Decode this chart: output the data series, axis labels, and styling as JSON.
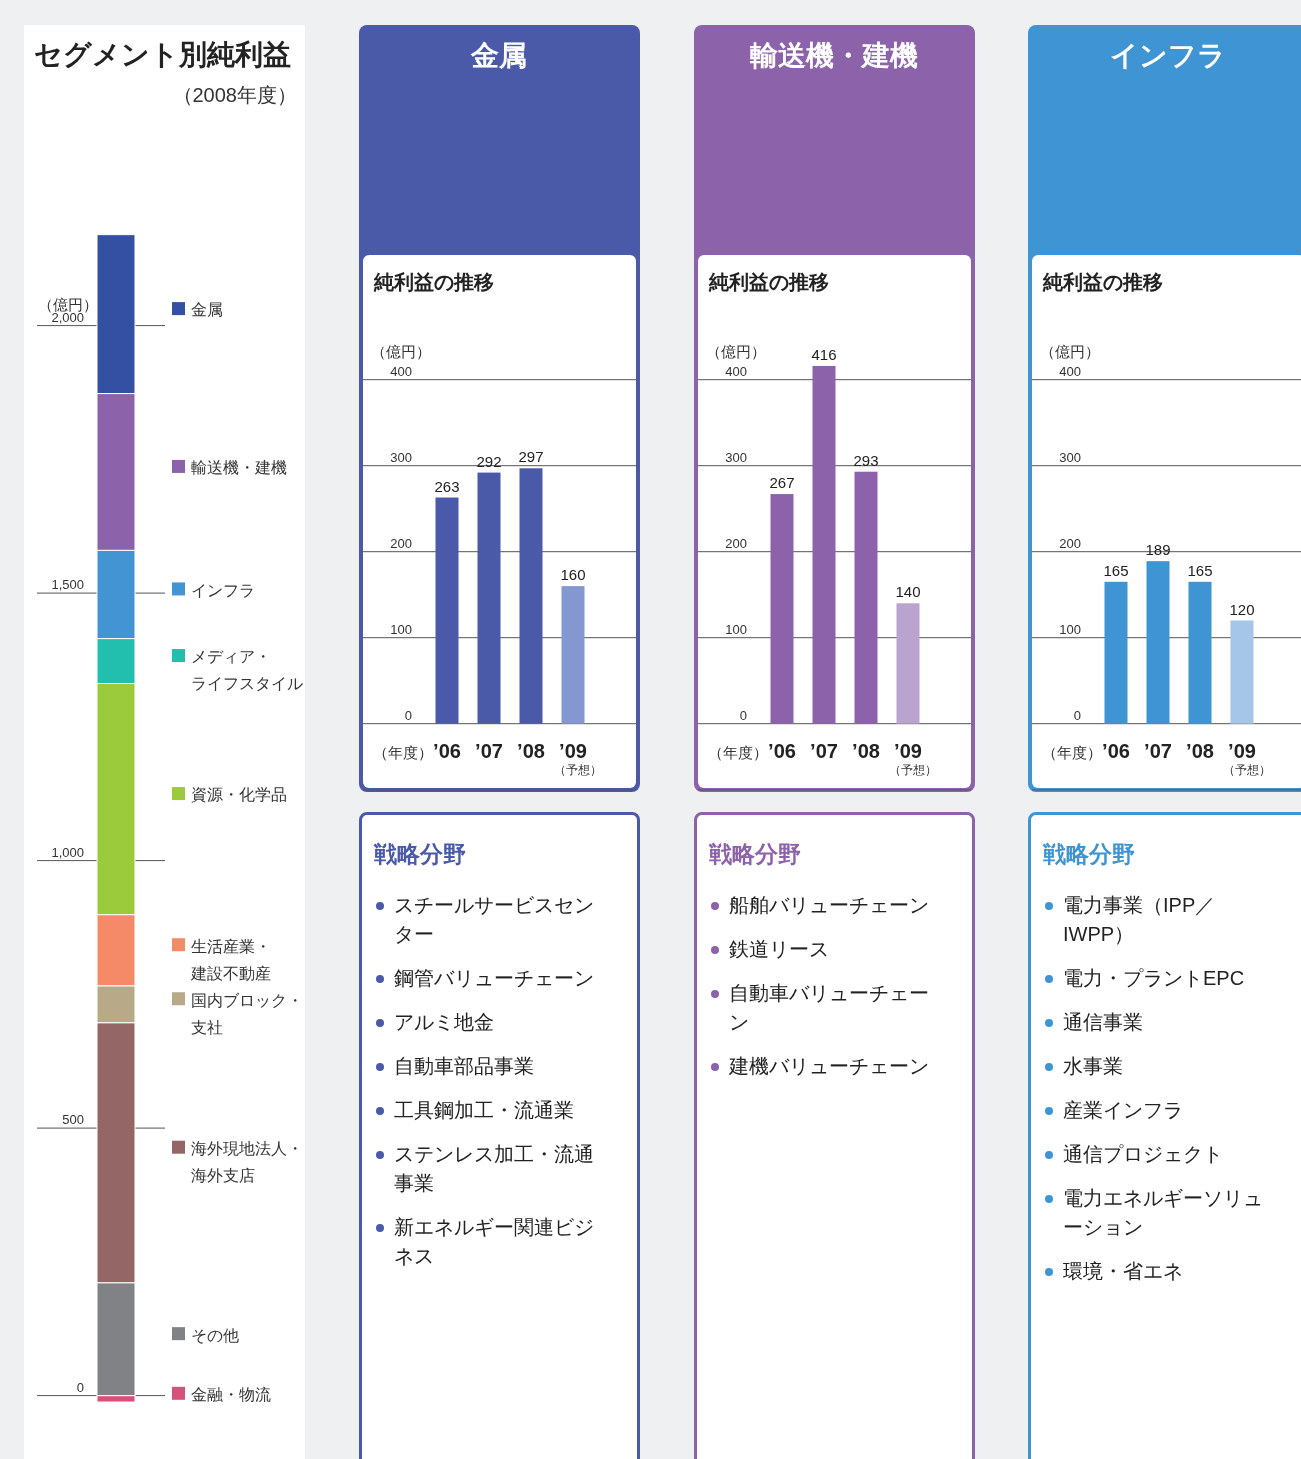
{
  "chart_data": [
    {
      "type": "bar",
      "stacked": true,
      "title": "セグメント別純利益",
      "subtitle": "（2008年度）",
      "ylabel": "（億円）",
      "categories": [
        null
      ],
      "ylim": [
        -115,
        2560
      ],
      "yticks": [
        0,
        {
          "value": 500,
          "label": "500"
        },
        {
          "value": 1000,
          "label": "1,000"
        },
        {
          "value": 1500,
          "label": "1,500"
        },
        {
          "value": 2000,
          "label": "2,000"
        }
      ],
      "grid": "y",
      "legend": "right",
      "series": [
        {
          "name": "金融・物流",
          "color": "#d9507a",
          "values": [
            -12
          ]
        },
        {
          "name": "その他",
          "color": "#808285",
          "values": [
            211
          ]
        },
        {
          "name": "海外現地法人・海外支店",
          "color": "#946665",
          "values": [
            486
          ]
        },
        {
          "name": "国内ブロック・支社",
          "color": "#b8aa88",
          "values": [
            69
          ]
        },
        {
          "name": "生活産業・建設不動産",
          "color": "#f58a68",
          "values": [
            133
          ]
        },
        {
          "name": "資源・化学品",
          "color": "#9bcb3a",
          "values": [
            432
          ]
        },
        {
          "name": "メディア・ライフスタイル",
          "color": "#22bfae",
          "values": [
            84
          ]
        },
        {
          "name": "インフラ",
          "color": "#4294d2",
          "values": [
            165
          ]
        },
        {
          "name": "輸送機・建機",
          "color": "#8c62ab",
          "values": [
            293
          ]
        },
        {
          "name": "金属",
          "color": "#3450a2",
          "values": [
            297
          ]
        }
      ]
    },
    {
      "type": "bar",
      "title": "金属",
      "subtitle": "純利益の推移",
      "ylabel": "（億円）",
      "xlabel": "（年度）",
      "categories": [
        "’06",
        "’07",
        "’08",
        "’09"
      ],
      "values": [
        263,
        292,
        297,
        160
      ],
      "ylim": [
        -77,
        545
      ],
      "colors": [
        "#4a5aa8",
        "#4a5aa8",
        "#4a5aa8",
        "#8597d0"
      ],
      "data_labels": true,
      "yticks": [
        0,
        100,
        200,
        300,
        400
      ],
      "grid": "y",
      "annotations": [
        "（予想）"
      ]
    },
    {
      "type": "other",
      "title": "戦略分野",
      "annotations": [
        "スチールサービスセンター",
        "鋼管バリューチェーン",
        "アルミ地金",
        "自動車部品事業",
        "工具鋼加工・流通業",
        "ステンレス加工・流通事業",
        "新エネルギー関連ビジネス"
      ]
    },
    {
      "type": "bar",
      "title": "輸送機・建機",
      "subtitle": "純利益の推移",
      "ylabel": "（億円）",
      "xlabel": "（年度）",
      "categories": [
        "’06",
        "’07",
        "’08",
        "’09"
      ],
      "values": [
        267,
        416,
        293,
        140
      ],
      "ylim": [
        -77,
        545
      ],
      "colors": [
        "#8c62aa",
        "#8c62aa",
        "#8c62aa",
        "#b9a3cf"
      ],
      "data_labels": true,
      "yticks": [
        0,
        100,
        200,
        300,
        400
      ],
      "grid": "y",
      "annotations": [
        "（予想）"
      ]
    },
    {
      "type": "other",
      "title": "戦略分野",
      "annotations": [
        "船舶バリューチェーン",
        "鉄道リース",
        "自動車バリューチェーン",
        "建機バリューチェーン"
      ]
    },
    {
      "type": "bar",
      "title": "インフラ",
      "subtitle": "純利益の推移",
      "ylabel": "（億円）",
      "xlabel": "（年度）",
      "categories": [
        "’06",
        "’07",
        "’08",
        "’09"
      ],
      "values": [
        165,
        189,
        165,
        120
      ],
      "ylim": [
        -77,
        545
      ],
      "colors": [
        "#3f95d3",
        "#3f95d3",
        "#3f95d3",
        "#a5c6e8"
      ],
      "data_labels": true,
      "yticks": [
        0,
        100,
        200,
        300,
        400
      ],
      "grid": "y",
      "annotations": [
        "（予想）"
      ]
    },
    {
      "type": "other",
      "title": "戦略分野",
      "annotations": [
        "電力事業（IPP／IWPP）",
        "電力・プラントEPC",
        "通信事業",
        "水事業",
        "産業インフラ",
        "通信プロジェクト",
        "電力エネルギーソリューション",
        "環境・省エネ"
      ]
    }
  ]
}
